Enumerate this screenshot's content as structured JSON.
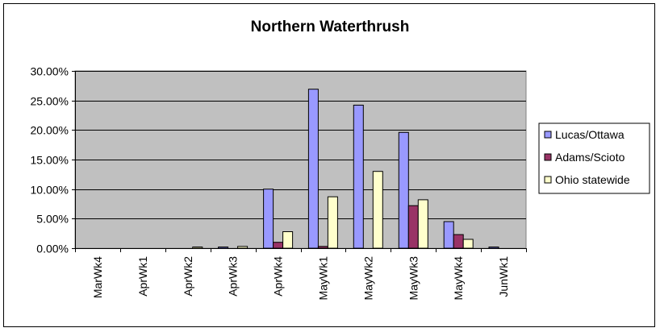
{
  "chart_data": {
    "type": "bar",
    "title": "Northern Waterthrush",
    "xlabel": "",
    "ylabel": "",
    "categories": [
      "MarWk4",
      "AprWk1",
      "AprWk2",
      "AprWk3",
      "AprWk4",
      "MayWk1",
      "MayWk2",
      "MayWk3",
      "MayWk4",
      "JunWk1"
    ],
    "ylim": [
      0,
      30
    ],
    "yticks": [
      "0.00%",
      "5.00%",
      "10.00%",
      "15.00%",
      "20.00%",
      "25.00%",
      "30.00%"
    ],
    "grid": true,
    "legend_position": "right",
    "series": [
      {
        "name": "Lucas/Ottawa",
        "color": "#9999ff",
        "values": [
          0,
          0,
          0,
          0.2,
          10.0,
          26.9,
          24.2,
          19.6,
          4.5,
          0.2
        ]
      },
      {
        "name": "Adams/Scioto",
        "color": "#993366",
        "values": [
          0,
          0,
          0,
          0,
          1.0,
          0.3,
          0,
          7.2,
          2.3,
          0
        ]
      },
      {
        "name": "Ohio statewide",
        "color": "#ffffcc",
        "values": [
          0,
          0,
          0.2,
          0.3,
          2.8,
          8.7,
          13.0,
          8.2,
          1.5,
          0
        ]
      }
    ]
  }
}
